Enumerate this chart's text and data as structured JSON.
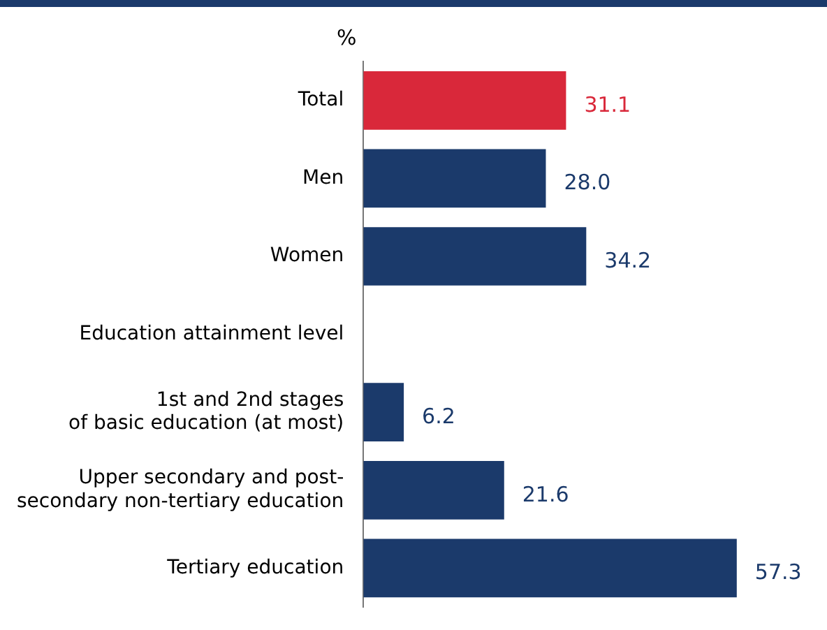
{
  "chart_data": {
    "type": "bar",
    "orientation": "horizontal",
    "xlabel": "%",
    "categories": [
      "Total",
      "Men",
      "Women",
      "Education attainment level",
      "1st and 2nd stages\nof basic education (at most)",
      "Upper secondary and post-\nsecondary non-tertiary education",
      "Tertiary education"
    ],
    "values": [
      31.1,
      28.0,
      34.2,
      null,
      6.2,
      21.6,
      57.3
    ],
    "value_labels": [
      "31.1",
      "28.0",
      "34.2",
      null,
      "6.2",
      "21.6",
      "57.3"
    ],
    "colors": [
      "#d9283a",
      "#1b3a6b",
      "#1b3a6b",
      null,
      "#1b3a6b",
      "#1b3a6b",
      "#1b3a6b"
    ],
    "tick_labels": "y",
    "legend": false
  }
}
